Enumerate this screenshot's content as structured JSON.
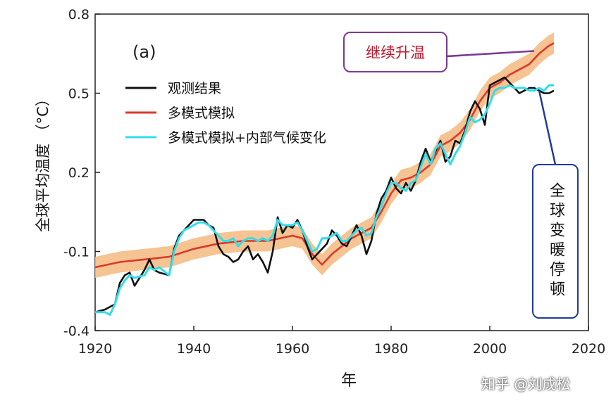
{
  "chart_data": {
    "type": "line",
    "panel_label": "(a)",
    "ylabel": "全球平均温度 （°C）",
    "xlabel": "年",
    "xlim": [
      1920,
      2020
    ],
    "ylim": [
      -0.4,
      0.8
    ],
    "xticks": [
      "1920",
      "1940",
      "1960",
      "1980",
      "2000",
      "2020"
    ],
    "xtick_values": [
      1920,
      1940,
      1960,
      1980,
      2000,
      2020
    ],
    "yticks": [
      "-0.4",
      "-0.1",
      "0.2",
      "0.5",
      "0.8"
    ],
    "ytick_values": [
      -0.4,
      -0.1,
      0.2,
      0.5,
      0.8
    ],
    "legend_position": "upper-left",
    "series": [
      {
        "name": "观测结果",
        "color": "#111111",
        "x": [
          1920,
          1922,
          1924,
          1925,
          1926,
          1927,
          1928,
          1930,
          1931,
          1932,
          1933,
          1935,
          1936,
          1937,
          1938,
          1939,
          1940,
          1941,
          1942,
          1943,
          1944,
          1945,
          1946,
          1947,
          1948,
          1949,
          1950,
          1951,
          1952,
          1953,
          1954,
          1955,
          1956,
          1957,
          1958,
          1959,
          1960,
          1961,
          1962,
          1963,
          1964,
          1965,
          1966,
          1967,
          1968,
          1969,
          1970,
          1971,
          1972,
          1973,
          1974,
          1975,
          1976,
          1977,
          1978,
          1979,
          1980,
          1981,
          1982,
          1983,
          1984,
          1985,
          1986,
          1987,
          1988,
          1989,
          1990,
          1991,
          1992,
          1993,
          1994,
          1995,
          1996,
          1997,
          1998,
          1999,
          2000,
          2001,
          2002,
          2003,
          2004,
          2005,
          2006,
          2007,
          2008,
          2009,
          2010,
          2011,
          2012,
          2013
        ],
        "values": [
          -0.33,
          -0.32,
          -0.3,
          -0.22,
          -0.19,
          -0.18,
          -0.23,
          -0.17,
          -0.13,
          -0.17,
          -0.18,
          -0.19,
          -0.09,
          -0.04,
          -0.02,
          0.0,
          0.02,
          0.02,
          0.02,
          0.0,
          -0.01,
          -0.08,
          -0.11,
          -0.12,
          -0.14,
          -0.13,
          -0.1,
          -0.08,
          -0.13,
          -0.11,
          -0.14,
          -0.18,
          -0.1,
          0.03,
          -0.03,
          0.0,
          -0.01,
          0.02,
          -0.02,
          -0.08,
          -0.13,
          -0.11,
          -0.09,
          -0.07,
          -0.02,
          -0.04,
          -0.07,
          -0.08,
          -0.04,
          0.0,
          -0.04,
          -0.11,
          -0.06,
          0.04,
          0.1,
          0.13,
          0.18,
          0.14,
          0.12,
          0.16,
          0.13,
          0.17,
          0.24,
          0.29,
          0.24,
          0.28,
          0.32,
          0.24,
          0.26,
          0.32,
          0.31,
          0.36,
          0.43,
          0.47,
          0.44,
          0.38,
          0.53,
          0.54,
          0.55,
          0.56,
          0.54,
          0.52,
          0.5,
          0.51,
          0.52,
          0.52,
          0.51,
          0.5,
          0.5,
          0.51
        ]
      },
      {
        "name": "多模式模拟",
        "color": "#d93a2b",
        "x": [
          1920,
          1925,
          1930,
          1935,
          1940,
          1945,
          1950,
          1955,
          1960,
          1962,
          1964,
          1966,
          1968,
          1970,
          1972,
          1974,
          1976,
          1978,
          1980,
          1982,
          1984,
          1986,
          1988,
          1990,
          1992,
          1994,
          1996,
          1998,
          2000,
          2002,
          2004,
          2006,
          2008,
          2010,
          2012,
          2013
        ],
        "values": [
          -0.16,
          -0.14,
          -0.13,
          -0.12,
          -0.09,
          -0.07,
          -0.06,
          -0.06,
          -0.04,
          -0.05,
          -0.11,
          -0.15,
          -0.11,
          -0.08,
          -0.05,
          -0.03,
          -0.01,
          0.05,
          0.12,
          0.17,
          0.18,
          0.2,
          0.23,
          0.3,
          0.32,
          0.35,
          0.4,
          0.47,
          0.52,
          0.54,
          0.57,
          0.59,
          0.61,
          0.65,
          0.68,
          0.69
        ]
      },
      {
        "name": "多模式模拟+内部气候变化",
        "color": "#33dde8",
        "x": [
          1920,
          1922,
          1923,
          1924,
          1925,
          1926,
          1927,
          1928,
          1930,
          1931,
          1932,
          1933,
          1935,
          1936,
          1937,
          1938,
          1939,
          1940,
          1941,
          1942,
          1943,
          1944,
          1945,
          1946,
          1947,
          1948,
          1949,
          1950,
          1951,
          1952,
          1953,
          1954,
          1955,
          1956,
          1957,
          1958,
          1959,
          1960,
          1961,
          1962,
          1963,
          1964,
          1965,
          1966,
          1967,
          1968,
          1969,
          1970,
          1971,
          1972,
          1973,
          1974,
          1975,
          1976,
          1977,
          1978,
          1979,
          1980,
          1981,
          1982,
          1983,
          1984,
          1985,
          1986,
          1987,
          1988,
          1989,
          1990,
          1991,
          1992,
          1993,
          1994,
          1995,
          1996,
          1997,
          1998,
          1999,
          2000,
          2001,
          2002,
          2003,
          2004,
          2005,
          2006,
          2007,
          2008,
          2009,
          2010,
          2011,
          2012,
          2013
        ],
        "values": [
          -0.33,
          -0.33,
          -0.34,
          -0.3,
          -0.24,
          -0.21,
          -0.19,
          -0.2,
          -0.19,
          -0.16,
          -0.17,
          -0.16,
          -0.19,
          -0.1,
          -0.05,
          -0.02,
          -0.01,
          0.0,
          0.01,
          0.01,
          0.0,
          -0.02,
          -0.04,
          -0.06,
          -0.06,
          -0.05,
          -0.08,
          -0.06,
          -0.05,
          -0.05,
          -0.06,
          -0.05,
          -0.06,
          -0.04,
          0.02,
          0.0,
          0.0,
          0.0,
          0.01,
          -0.02,
          -0.06,
          -0.1,
          -0.09,
          -0.05,
          -0.05,
          -0.04,
          -0.03,
          -0.06,
          -0.06,
          -0.04,
          -0.02,
          -0.01,
          -0.04,
          -0.03,
          0.03,
          0.07,
          0.12,
          0.16,
          0.16,
          0.14,
          0.13,
          0.16,
          0.17,
          0.22,
          0.27,
          0.23,
          0.29,
          0.31,
          0.27,
          0.23,
          0.27,
          0.3,
          0.35,
          0.41,
          0.39,
          0.4,
          0.42,
          0.46,
          0.51,
          0.52,
          0.52,
          0.53,
          0.52,
          0.52,
          0.52,
          0.51,
          0.51,
          0.52,
          0.51,
          0.53,
          0.53
        ]
      }
    ],
    "uncertainty_band": {
      "color": "#f5b97f",
      "x": [
        1920,
        1925,
        1930,
        1935,
        1940,
        1945,
        1950,
        1955,
        1960,
        1962,
        1964,
        1966,
        1968,
        1970,
        1972,
        1974,
        1976,
        1978,
        1980,
        1982,
        1984,
        1986,
        1988,
        1990,
        1992,
        1994,
        1996,
        1998,
        2000,
        2002,
        2004,
        2006,
        2008,
        2010,
        2012,
        2013
      ],
      "lower": [
        -0.2,
        -0.18,
        -0.17,
        -0.16,
        -0.13,
        -0.11,
        -0.1,
        -0.1,
        -0.08,
        -0.09,
        -0.15,
        -0.19,
        -0.15,
        -0.12,
        -0.09,
        -0.07,
        -0.05,
        0.01,
        0.08,
        0.13,
        0.14,
        0.16,
        0.19,
        0.26,
        0.28,
        0.31,
        0.36,
        0.43,
        0.48,
        0.5,
        0.53,
        0.55,
        0.57,
        0.61,
        0.64,
        0.65
      ],
      "upper": [
        -0.12,
        -0.1,
        -0.09,
        -0.08,
        -0.05,
        -0.03,
        -0.02,
        -0.02,
        0.0,
        -0.01,
        -0.07,
        -0.11,
        -0.07,
        -0.04,
        -0.01,
        0.01,
        0.03,
        0.09,
        0.16,
        0.21,
        0.22,
        0.24,
        0.27,
        0.34,
        0.36,
        0.39,
        0.44,
        0.51,
        0.56,
        0.58,
        0.61,
        0.63,
        0.65,
        0.69,
        0.72,
        0.73
      ]
    },
    "annotations": [
      {
        "id": "warming",
        "text": "继续升温",
        "target_x": 2009,
        "target_y": 0.66,
        "color": "#c0152a",
        "border": "#7a3a95"
      },
      {
        "id": "pause",
        "text": "全球变暖停顿",
        "target_x": 2010,
        "target_y": 0.51,
        "color": "#111111",
        "border": "#1f3c9a"
      }
    ]
  },
  "watermark": "知乎 @刘成松"
}
